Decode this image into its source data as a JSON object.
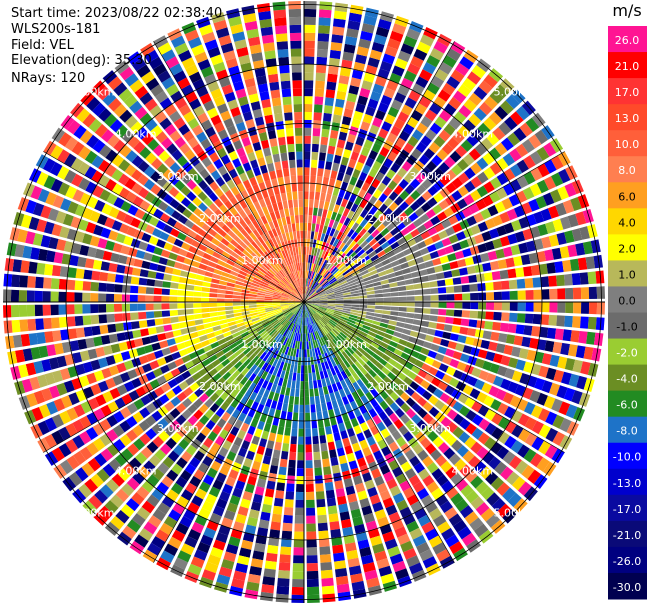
{
  "info": {
    "start_time": "Start time: 2023/08/22 02:38:40",
    "instrument": "WLS200s-181",
    "field": "Field: VEL",
    "elevation": "Elevation(deg): 35.30",
    "nrays": "NRays: 120"
  },
  "chart_data": {
    "type": "heatmap",
    "projection": "polar PPI",
    "field": "VEL",
    "units": "m/s",
    "n_rays": 120,
    "range_rings": [
      {
        "range_label": "1.00km"
      },
      {
        "range_label": "2.00km"
      },
      {
        "range_label": "3.00km"
      },
      {
        "range_label": "4.00km"
      },
      {
        "range_label": "5.00km"
      }
    ],
    "colorbar": {
      "title": "m/s",
      "ticks": [
        "26.0",
        "21.0",
        "17.0",
        "13.0",
        "10.0",
        "8.0",
        "6.0",
        "4.0",
        "2.0",
        "1.0",
        "0.0",
        "-1.0",
        "-2.0",
        "-4.0",
        "-6.0",
        "-8.0",
        "-10.0",
        "-13.0",
        "-17.0",
        "-21.0",
        "-26.0",
        "-30.0"
      ],
      "colors": [
        "#ff1493",
        "#ff0000",
        "#ff3333",
        "#ff4a2a",
        "#ff5f3a",
        "#ff7f50",
        "#ff9f20",
        "#ffd700",
        "#ffff00",
        "#b8b85a",
        "#7f7f7f",
        "#6c6c6c",
        "#9acd32",
        "#6b8e23",
        "#228b22",
        "#1e73c8",
        "#0000ff",
        "#0000cd",
        "#0a0aa0",
        "#0a0a78",
        "#000080",
        "#000050"
      ]
    },
    "regions": [
      {
        "sector": "north-west",
        "dominant": "positive (+6 to +13 m/s, orange/salmon)"
      },
      {
        "sector": "west",
        "dominant": "+2 to +4 m/s (yellow)"
      },
      {
        "sector": "east",
        "dominant": "0 to +1 m/s (grey/olive)"
      },
      {
        "sector": "south",
        "dominant": "-4 to -8 m/s (green/blue)"
      },
      {
        "sector": "outer rings",
        "dominant": "noise (all values)"
      }
    ]
  }
}
